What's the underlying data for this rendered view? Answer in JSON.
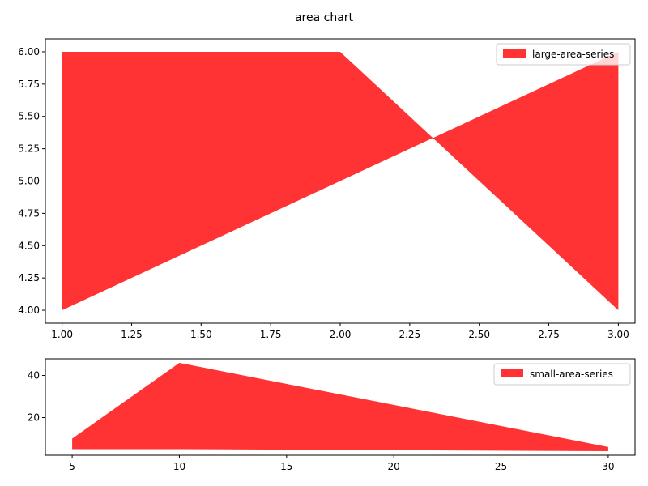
{
  "figure": {
    "title": "area chart"
  },
  "colors": {
    "fill": "#ff3333",
    "axis": "#000000",
    "legend_border": "#cccccc"
  },
  "chart_data": [
    {
      "type": "area",
      "title": "",
      "xlabel": "",
      "ylabel": "",
      "xlim": [
        0.94,
        3.06
      ],
      "ylim": [
        3.9,
        6.1
      ],
      "xticks": [
        1.0,
        1.25,
        1.5,
        1.75,
        2.0,
        2.25,
        2.5,
        2.75,
        3.0
      ],
      "xtick_labels": [
        "1.00",
        "1.25",
        "1.50",
        "1.75",
        "2.00",
        "2.25",
        "2.50",
        "2.75",
        "3.00"
      ],
      "yticks": [
        4.0,
        4.25,
        4.5,
        4.75,
        5.0,
        5.25,
        5.5,
        5.75,
        6.0
      ],
      "ytick_labels": [
        "4.00",
        "4.25",
        "4.50",
        "4.75",
        "5.00",
        "5.25",
        "5.50",
        "5.75",
        "6.00"
      ],
      "grid": false,
      "legend_position": "top-right",
      "series": [
        {
          "name": "large-area-series",
          "x": [
            1,
            2,
            3
          ],
          "y_upper": [
            6,
            6,
            4
          ],
          "y_lower": [
            4,
            5,
            6
          ]
        }
      ]
    },
    {
      "type": "area",
      "title": "",
      "xlabel": "",
      "ylabel": "",
      "xlim": [
        3.75,
        31.25
      ],
      "ylim": [
        2.1,
        47.9
      ],
      "xticks": [
        5,
        10,
        15,
        20,
        25,
        30
      ],
      "xtick_labels": [
        "5",
        "10",
        "15",
        "20",
        "25",
        "30"
      ],
      "yticks": [
        20,
        40
      ],
      "ytick_labels": [
        "20",
        "40"
      ],
      "grid": false,
      "legend_position": "top-right",
      "series": [
        {
          "name": "small-area-series",
          "x": [
            5,
            10,
            30
          ],
          "y_upper": [
            10,
            46,
            6
          ],
          "y_lower": [
            5,
            5,
            4
          ]
        }
      ]
    }
  ]
}
